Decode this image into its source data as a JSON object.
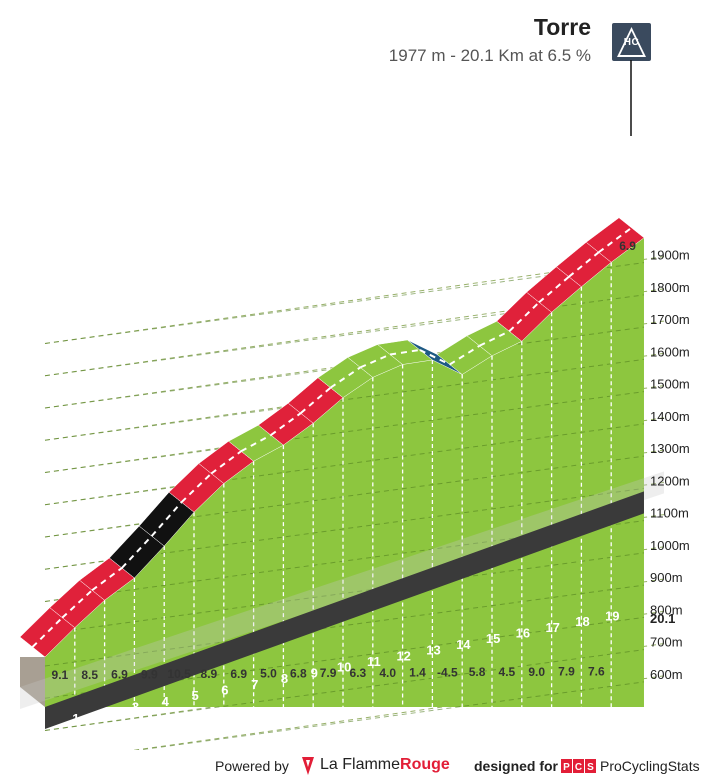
{
  "climb": {
    "name": "Torre",
    "summary": "1977 m - 20.1 Km at 6.5 %",
    "category": "HC"
  },
  "footer": {
    "powered": "Powered by",
    "lfr_plain": "La Flamme",
    "lfr_bold": "Rouge",
    "designed": "designed for",
    "pcs_logo": "PCS",
    "pcs_name": "ProCyclingStats"
  },
  "colors": {
    "ground": "#8dc63f",
    "grade_low": "#8dc63f",
    "grade_mid": "#1e5a84",
    "grade_high": "#e0213a",
    "grade_max": "#111111",
    "base": "#3a3a3a",
    "start_wall": "#a89f93"
  },
  "chart_data": {
    "type": "area",
    "title": "Torre",
    "xlabel": "",
    "ylabel": "",
    "x_unit": "km",
    "y_unit": "m",
    "km_marks": [
      "1",
      "2",
      "3",
      "4",
      "5",
      "6",
      "7",
      "8",
      "9",
      "10",
      "11",
      "12",
      "13",
      "14",
      "15",
      "16",
      "17",
      "18",
      "19"
    ],
    "total_distance_label": "20.1",
    "elevation_ticks": [
      600,
      700,
      800,
      900,
      1000,
      1100,
      1200,
      1300,
      1400,
      1500,
      1600,
      1700,
      1800,
      1900
    ],
    "elevation_tick_labels": [
      "600m",
      "700m",
      "800m",
      "900m",
      "1000m",
      "1100m",
      "1200m",
      "1300m",
      "1400m",
      "1500m",
      "1600m",
      "1700m",
      "1800m",
      "1900m"
    ],
    "segments": [
      {
        "km": 1,
        "gradient": 9.1
      },
      {
        "km": 2,
        "gradient": 8.5
      },
      {
        "km": 3,
        "gradient": 6.9
      },
      {
        "km": 4,
        "gradient": 9.9
      },
      {
        "km": 5,
        "gradient": 10.5
      },
      {
        "km": 6,
        "gradient": 8.9
      },
      {
        "km": 7,
        "gradient": 6.9
      },
      {
        "km": 8,
        "gradient": 5.0
      },
      {
        "km": 9,
        "gradient": 6.8
      },
      {
        "km": 10,
        "gradient": 7.9
      },
      {
        "km": 11,
        "gradient": 6.3
      },
      {
        "km": 12,
        "gradient": 4.0
      },
      {
        "km": 13,
        "gradient": 1.4
      },
      {
        "km": 14,
        "gradient": -4.5
      },
      {
        "km": 15,
        "gradient": 5.8
      },
      {
        "km": 16,
        "gradient": 4.5
      },
      {
        "km": 17,
        "gradient": 9.0
      },
      {
        "km": 18,
        "gradient": 7.9
      },
      {
        "km": 19,
        "gradient": 7.6
      },
      {
        "km": 20.1,
        "gradient": 6.9
      }
    ]
  }
}
